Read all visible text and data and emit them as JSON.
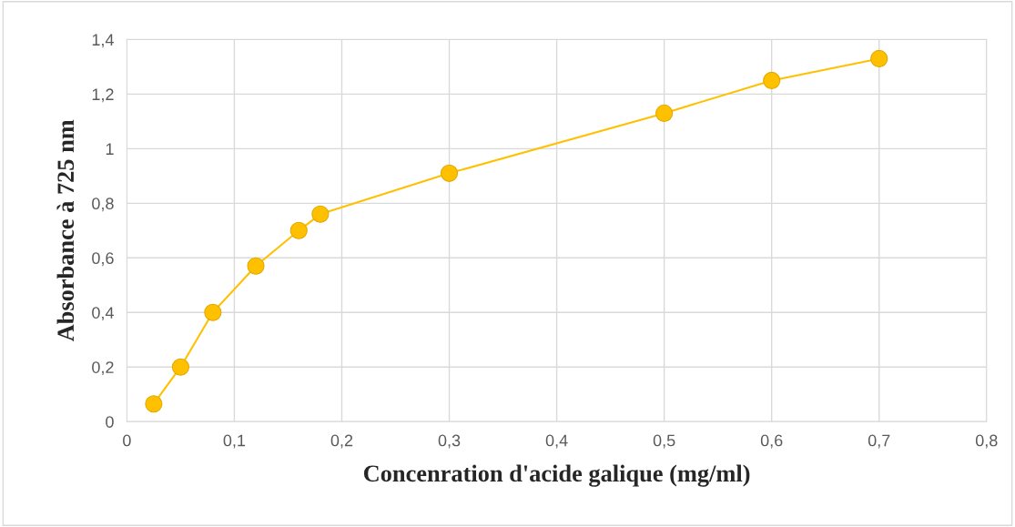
{
  "chart_data": {
    "type": "line",
    "xlabel": "Concenration d'acide galique (mg/ml)",
    "ylabel": "Absorbance à 725 nm",
    "x": [
      0.025,
      0.05,
      0.08,
      0.12,
      0.16,
      0.18,
      0.3,
      0.5,
      0.6,
      0.7
    ],
    "series": [
      {
        "color": "#ffc000",
        "values": [
          0.065,
          0.2,
          0.4,
          0.57,
          0.7,
          0.76,
          0.91,
          1.13,
          1.25,
          1.33
        ]
      }
    ],
    "marker": "circle",
    "line_style": "solid",
    "grid": true,
    "xlim": [
      0,
      0.8
    ],
    "ylim": [
      0,
      1.4
    ],
    "xticks": [
      0,
      {
        "value": 0.1,
        "label": "0,1"
      },
      {
        "value": 0.2,
        "label": "0,2"
      },
      {
        "value": 0.3,
        "label": "0,3"
      },
      {
        "value": 0.4,
        "label": "0,4"
      },
      {
        "value": 0.5,
        "label": "0,5"
      },
      {
        "value": 0.6,
        "label": "0,6"
      },
      {
        "value": 0.7,
        "label": "0,7"
      },
      {
        "value": 0.8,
        "label": "0,8"
      }
    ],
    "yticks": [
      0,
      {
        "value": 0.2,
        "label": "0,2"
      },
      {
        "value": 0.4,
        "label": "0,4"
      },
      {
        "value": 0.6,
        "label": "0,6"
      },
      {
        "value": 0.8,
        "label": "0,8"
      },
      1,
      {
        "value": 1.2,
        "label": "1,2"
      },
      {
        "value": 1.4,
        "label": "1,4"
      }
    ]
  }
}
